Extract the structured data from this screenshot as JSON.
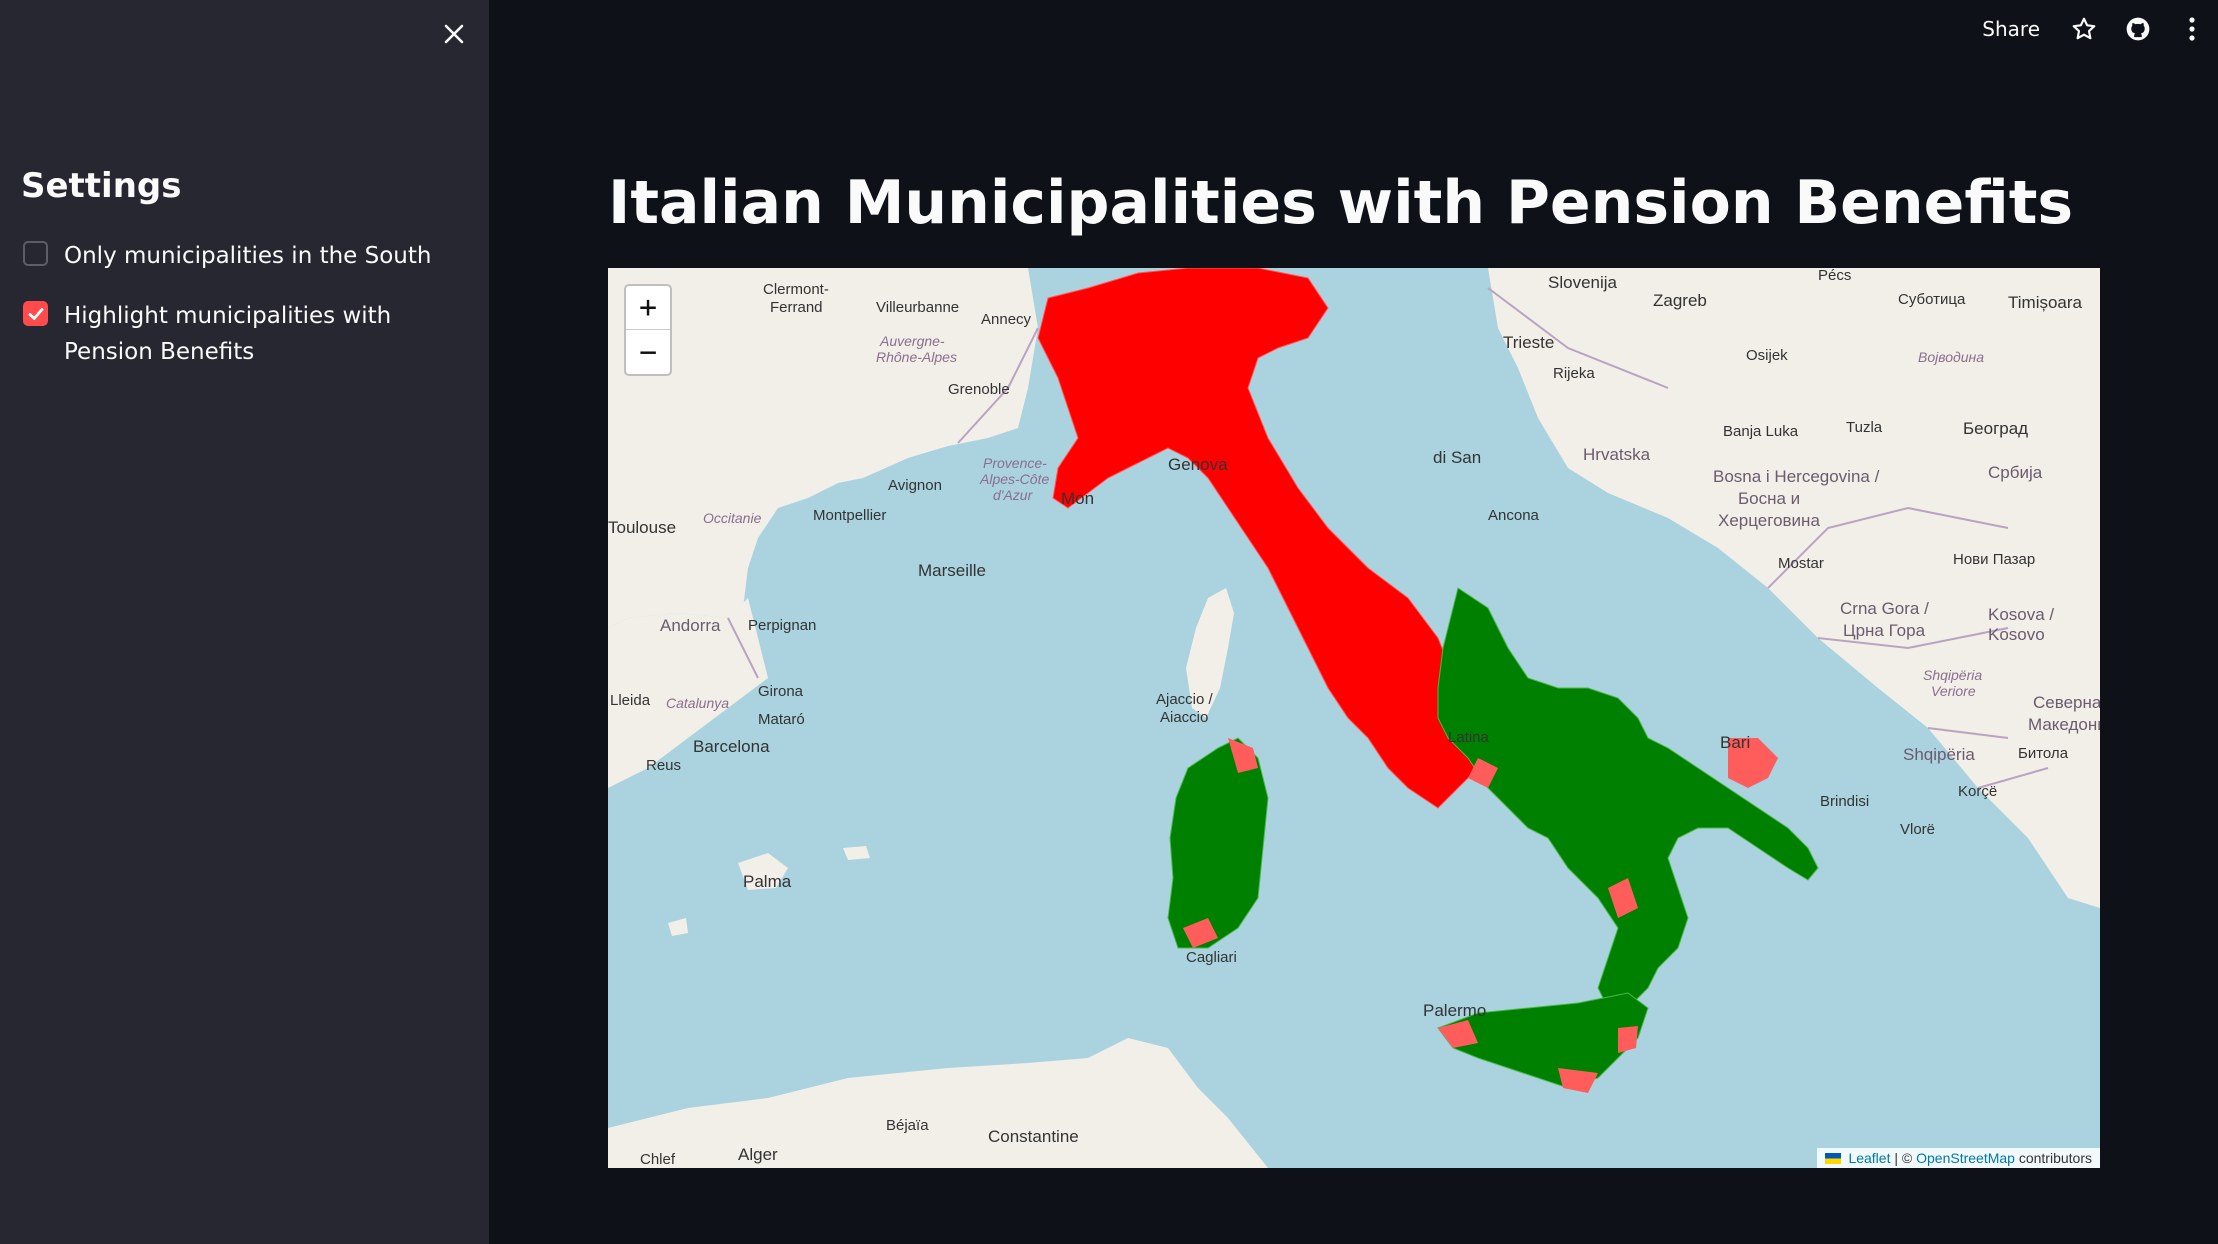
{
  "sidebar": {
    "heading": "Settings",
    "options": [
      {
        "label": "Only municipalities in the South",
        "checked": false
      },
      {
        "label": "Highlight municipalities with Pension Benefits",
        "checked": true
      }
    ]
  },
  "toolbar": {
    "share_label": "Share"
  },
  "main": {
    "title": "Italian Municipalities with Pension Benefits"
  },
  "map": {
    "zoom_in": "+",
    "zoom_out": "−",
    "attribution": {
      "leaflet": "Leaflet",
      "separator": " | © ",
      "osm": "OpenStreetMap",
      "contributors": " contributors"
    },
    "labels": [
      "Slovenija",
      "Zagreb",
      "Trieste",
      "Rijeka",
      "Hrvatska",
      "Genova",
      "Mon",
      "Marseille",
      "Avignon",
      "Montpellier",
      "Toulouse",
      "Occitanie",
      "Andorra",
      "Perpignan",
      "Girona",
      "Lleida",
      "Catalunya",
      "Barcelona",
      "Mataró",
      "Reus",
      "Palma",
      "Ajaccio / Aiaccio",
      "Cagliari",
      "Palermo",
      "Bari",
      "Brindisi",
      "Ancona",
      "di San",
      "Grenoble",
      "Annecy",
      "Villeurbanne",
      "Clermont-Ferrand",
      "Auvergne-Rhône-Alpes",
      "Provence-Alpes-Côte d'Azur",
      "Osijek",
      "Pécs",
      "Суботица",
      "Timișoara",
      "Војводина",
      "Banja Luka",
      "Tuzla",
      "Београд",
      "Bosna i Hercegovina / Босна и Херцеговина",
      "Србија",
      "Mostar",
      "Нови Пазар",
      "Crna Gora / Црна Гора",
      "Kosova / Kosovo",
      "Shqipëria",
      "Shqipëria Veriore",
      "Северна Македонија",
      "Битола",
      "Korçë",
      "Vlorë",
      "Alger",
      "Constantine",
      "Béjaïa",
      "Chlef",
      "Latina"
    ],
    "legend_colors": {
      "north": "#ff0000",
      "south": "#008000",
      "sea": "#aad3df",
      "land": "#f2efe9"
    }
  }
}
